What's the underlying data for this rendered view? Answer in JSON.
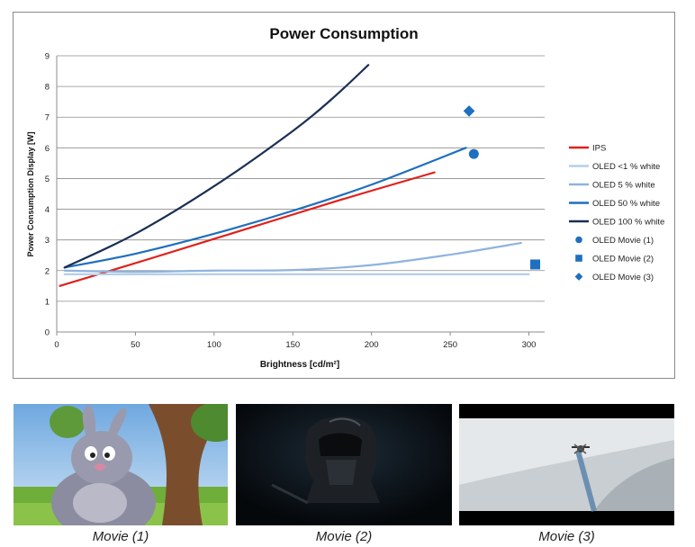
{
  "chart_data": {
    "type": "line",
    "title": "Power Consumption",
    "xlabel": "Brightness [cd/m²]",
    "ylabel": "Power Consumption Display [W]",
    "xlim": [
      0,
      310
    ],
    "ylim": [
      0,
      9
    ],
    "xticks": [
      "0",
      "50",
      "100",
      "150",
      "200",
      "250",
      "300"
    ],
    "yticks": [
      "0",
      "1",
      "2",
      "3",
      "4",
      "5",
      "6",
      "7",
      "8",
      "9"
    ],
    "grid": true,
    "legend_position": "right",
    "series": [
      {
        "name": "IPS",
        "color": "#e0201b",
        "kind": "line",
        "x": [
          2,
          60,
          120,
          180,
          240
        ],
        "y": [
          1.5,
          2.4,
          3.35,
          4.3,
          5.2
        ]
      },
      {
        "name": "OLED <1 % white",
        "color": "#b3cfe8",
        "kind": "line",
        "x": [
          5,
          100,
          200,
          300
        ],
        "y": [
          1.88,
          1.88,
          1.88,
          1.88
        ]
      },
      {
        "name": "OLED 5 % white",
        "color": "#8fb3de",
        "kind": "line",
        "x": [
          5,
          50,
          100,
          150,
          200,
          250,
          295
        ],
        "y": [
          2.0,
          1.96,
          2.0,
          2.02,
          2.18,
          2.52,
          2.9
        ]
      },
      {
        "name": "OLED 50 % white",
        "color": "#1e6fbf",
        "kind": "line",
        "x": [
          5,
          50,
          100,
          150,
          200,
          260
        ],
        "y": [
          2.1,
          2.55,
          3.2,
          3.95,
          4.8,
          6.0
        ]
      },
      {
        "name": "OLED 100 % white",
        "color": "#1a2f54",
        "kind": "line",
        "x": [
          5,
          50,
          100,
          150,
          175,
          198
        ],
        "y": [
          2.1,
          3.2,
          4.75,
          6.55,
          7.6,
          8.7
        ]
      },
      {
        "name": "OLED Movie (1)",
        "color": "#1e6fbf",
        "kind": "point",
        "marker": "circle",
        "x": [
          265
        ],
        "y": [
          5.8
        ]
      },
      {
        "name": "OLED Movie (2)",
        "color": "#1e6fbf",
        "kind": "point",
        "marker": "square",
        "x": [
          304
        ],
        "y": [
          2.2
        ]
      },
      {
        "name": "OLED Movie (3)",
        "color": "#1e6fbf",
        "kind": "point",
        "marker": "diamond",
        "x": [
          262
        ],
        "y": [
          7.2
        ]
      }
    ]
  },
  "thumbnails": [
    {
      "caption": "Movie (1)",
      "icon": "cartoon-rabbit-icon"
    },
    {
      "caption": "Movie (2)",
      "icon": "dark-helmet-icon"
    },
    {
      "caption": "Movie (3)",
      "icon": "bright-scene-icon"
    }
  ]
}
